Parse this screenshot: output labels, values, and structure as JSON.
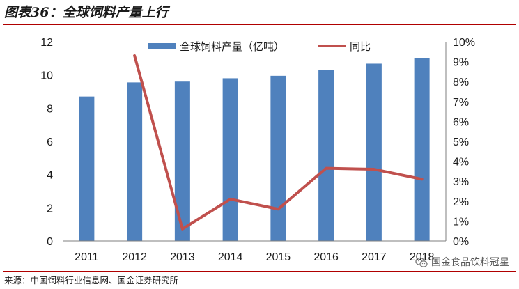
{
  "figure": {
    "title": "图表36：全球饲料产量上行",
    "source": "来源：中国饲料行业信息网、国金证券研究所",
    "watermark": "国金食品饮料冠星",
    "watermark_icon": "wechat-icon",
    "accent_color": "#b00000"
  },
  "chart_data": {
    "type": "bar",
    "categories": [
      "2011",
      "2012",
      "2013",
      "2014",
      "2015",
      "2016",
      "2017",
      "2018"
    ],
    "series": [
      {
        "name": "全球饲料产量（亿吨）",
        "type": "bar",
        "axis": "left",
        "color": "#4f81bd",
        "values": [
          8.7,
          9.55,
          9.6,
          9.8,
          9.95,
          10.3,
          10.68,
          11.0
        ]
      },
      {
        "name": "同比",
        "type": "line",
        "axis": "right",
        "color": "#c0504d",
        "values": [
          null,
          9.3,
          0.6,
          2.1,
          1.6,
          3.65,
          3.6,
          3.1
        ]
      }
    ],
    "ylim_left": [
      0,
      12
    ],
    "yticks_left": [
      0,
      2,
      4,
      6,
      8,
      10,
      12
    ],
    "ylim_right": [
      0,
      10
    ],
    "yticks_right": [
      "0%",
      "1%",
      "2%",
      "3%",
      "4%",
      "5%",
      "6%",
      "7%",
      "8%",
      "9%",
      "10%"
    ],
    "grid": false,
    "legend_position": "top"
  }
}
